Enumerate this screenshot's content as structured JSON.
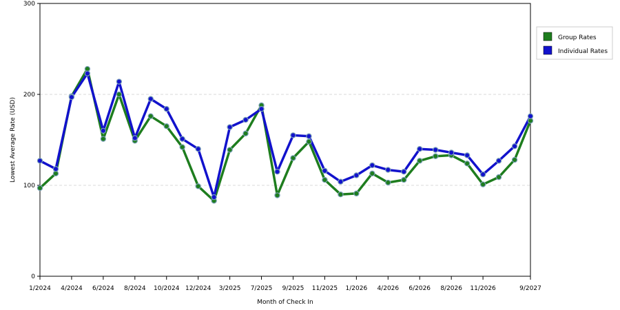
{
  "chart_data": {
    "type": "line",
    "title": "",
    "xlabel": "Month of Check In",
    "ylabel": "Lowest Average Rate (USD)",
    "ylim": [
      0,
      300
    ],
    "yticks": [
      0,
      100,
      200,
      300
    ],
    "grid": true,
    "legend_position": "top-right",
    "x_tick_labels": [
      "1/2024",
      "4/2024",
      "6/2024",
      "8/2024",
      "10/2024",
      "12/2024",
      "3/2025",
      "7/2025",
      "9/2025",
      "11/2025",
      "1/2026",
      "4/2026",
      "6/2026",
      "8/2026",
      "11/2026",
      "9/2027"
    ],
    "x_tick_positions": [
      0,
      2,
      4,
      6,
      8,
      10,
      12,
      14,
      16,
      18,
      20,
      22,
      24,
      26,
      28,
      31
    ],
    "series": [
      {
        "name": "Group Rates",
        "color": "#1e7d1e",
        "values": [
          97,
          113,
          198,
          228,
          151,
          200,
          149,
          176,
          165,
          142,
          99,
          83,
          139,
          157,
          188,
          89,
          130,
          148,
          106,
          90,
          91,
          113,
          103,
          106,
          127,
          132,
          133,
          124,
          101,
          109,
          128,
          171
        ]
      },
      {
        "name": "Individual Rates",
        "color": "#1212cc",
        "values": [
          127,
          118,
          197,
          223,
          160,
          214,
          152,
          195,
          184,
          151,
          140,
          87,
          164,
          172,
          184,
          115,
          155,
          154,
          116,
          104,
          111,
          122,
          117,
          115,
          140,
          139,
          136,
          133,
          112,
          127,
          143,
          176
        ]
      }
    ]
  }
}
